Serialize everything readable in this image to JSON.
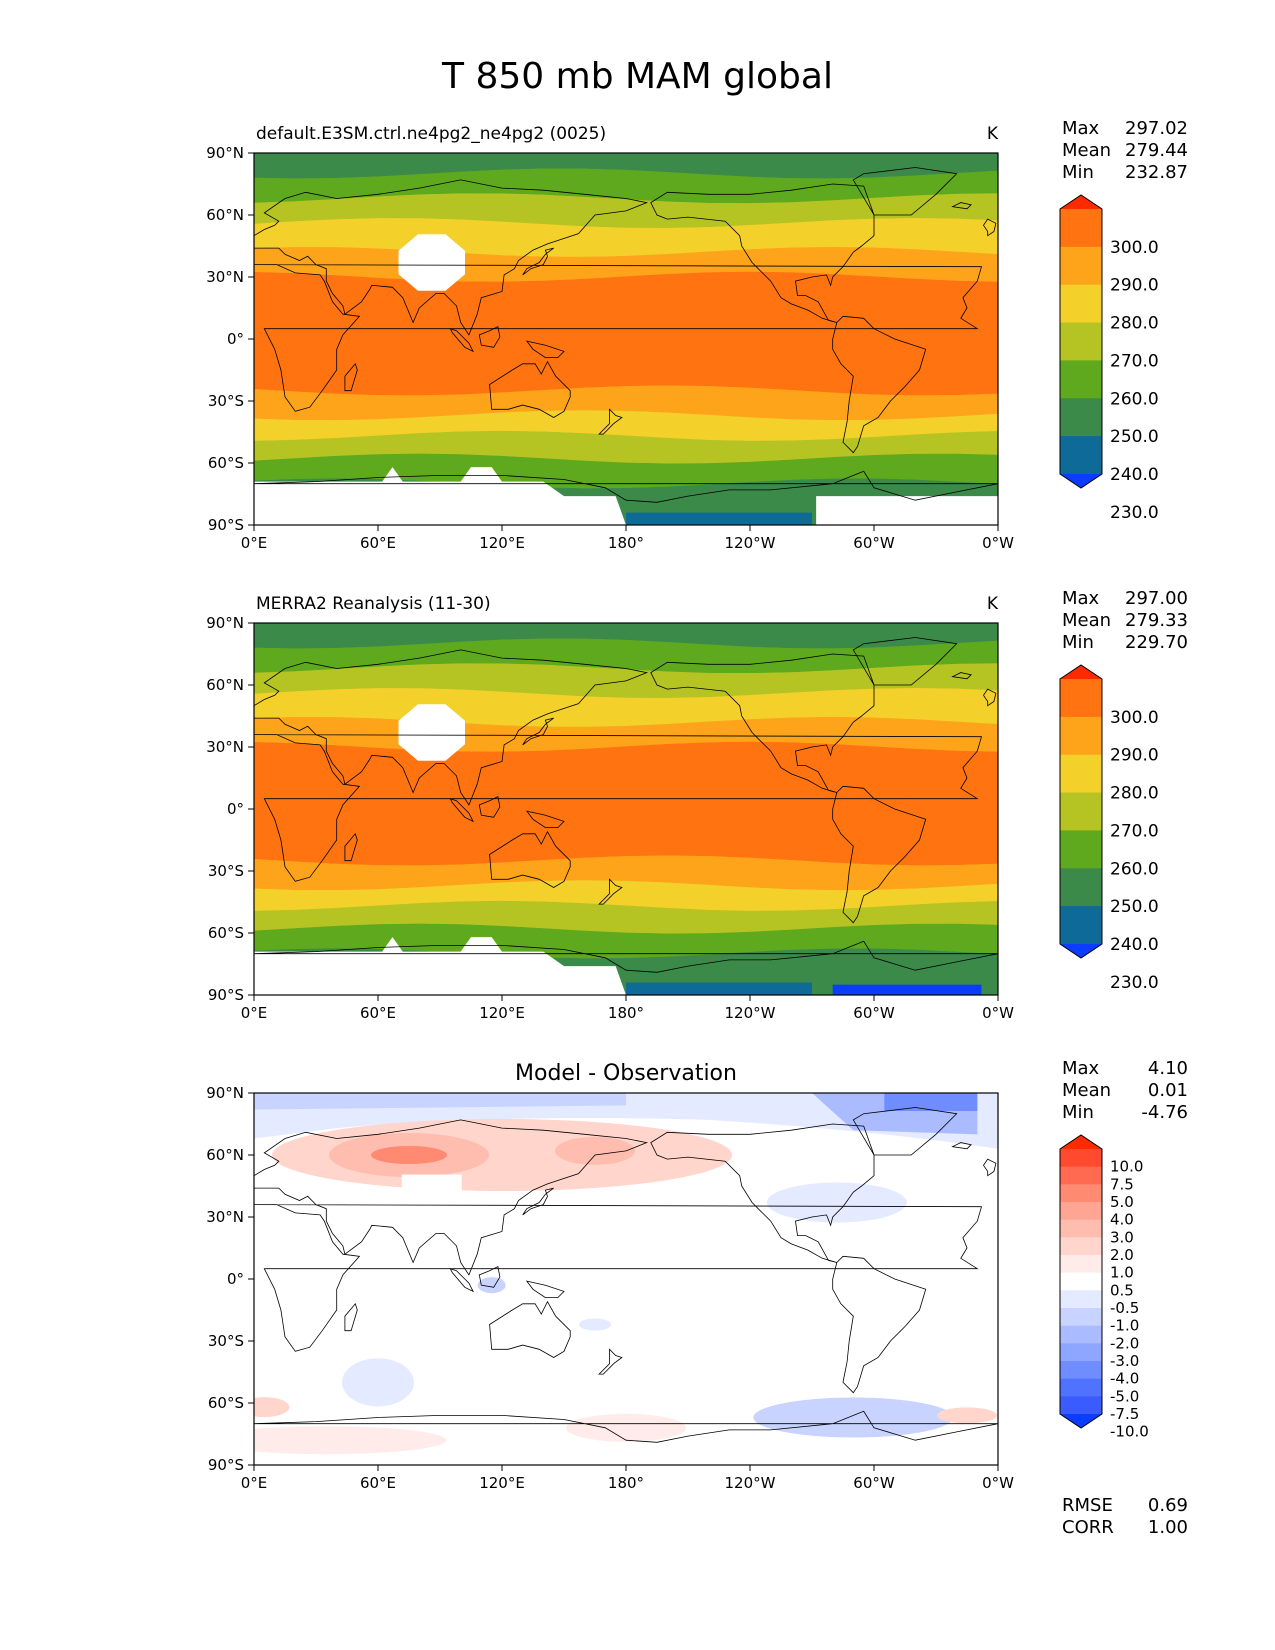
{
  "title": "T 850 mb MAM global",
  "panels": [
    {
      "id": "test",
      "subtitle_left": "default.E3SM.ctrl.ne4pg2_ne4pg2 (0025)",
      "subtitle_center": "",
      "units": "K",
      "stats": [
        {
          "label": "Max",
          "value": "297.02"
        },
        {
          "label": "Mean",
          "value": "279.44"
        },
        {
          "label": "Min",
          "value": "232.87"
        }
      ],
      "colorbar_levels": [
        "300.0",
        "290.0",
        "280.0",
        "270.0",
        "260.0",
        "250.0",
        "240.0",
        "230.0"
      ],
      "colorbar_colors": [
        "#ff2a00",
        "#ff7410",
        "#fea41a",
        "#f3d02a",
        "#b5c423",
        "#5ea91e",
        "#3b8a4a",
        "#0e6a96",
        "#0b3cff"
      ],
      "band_bounds_lat": [
        90,
        80,
        68,
        56,
        42,
        30,
        -25,
        -37,
        -47,
        -58,
        -70,
        -90
      ],
      "band_colors": [
        "#3b8a4a",
        "#5ea91e",
        "#b5c423",
        "#f3d02a",
        "#fea41a",
        "#ff7410",
        "#fea41a",
        "#f3d02a",
        "#b5c423",
        "#5ea91e",
        "#3b8a4a"
      ],
      "extra_dark_bottom": false
    },
    {
      "id": "ref",
      "subtitle_left": "MERRA2 Reanalysis (11-30)",
      "subtitle_center": "",
      "units": "K",
      "stats": [
        {
          "label": "Max",
          "value": "297.00"
        },
        {
          "label": "Mean",
          "value": "279.33"
        },
        {
          "label": "Min",
          "value": "229.70"
        }
      ],
      "colorbar_levels": [
        "300.0",
        "290.0",
        "280.0",
        "270.0",
        "260.0",
        "250.0",
        "240.0",
        "230.0"
      ],
      "colorbar_colors": [
        "#ff2a00",
        "#ff7410",
        "#fea41a",
        "#f3d02a",
        "#b5c423",
        "#5ea91e",
        "#3b8a4a",
        "#0e6a96",
        "#0b3cff"
      ],
      "band_bounds_lat": [
        90,
        80,
        68,
        56,
        42,
        30,
        -25,
        -37,
        -47,
        -58,
        -70,
        -90
      ],
      "band_colors": [
        "#3b8a4a",
        "#5ea91e",
        "#b5c423",
        "#f3d02a",
        "#fea41a",
        "#ff7410",
        "#fea41a",
        "#f3d02a",
        "#b5c423",
        "#5ea91e",
        "#3b8a4a"
      ],
      "extra_dark_bottom": true
    },
    {
      "id": "diff",
      "subtitle_left": "",
      "subtitle_center": "Model - Observation",
      "units": "",
      "stats": [
        {
          "label": "Max",
          "value": "4.10"
        },
        {
          "label": "Mean",
          "value": "0.01"
        },
        {
          "label": "Min",
          "value": "-4.76"
        }
      ],
      "colorbar_levels": [
        "10.0",
        "7.5",
        "5.0",
        "4.0",
        "3.0",
        "2.0",
        "1.0",
        "0.5",
        "-0.5",
        "-1.0",
        "-2.0",
        "-3.0",
        "-4.0",
        "-5.0",
        "-7.5",
        "-10.0"
      ],
      "colorbar_colors": [
        "#ff2a00",
        "#ff4a30",
        "#ff6a50",
        "#ff8a72",
        "#ffa594",
        "#ffbdb0",
        "#ffd5cc",
        "#ffecea",
        "#ffffff",
        "#e4eaff",
        "#c8d4ff",
        "#aabcff",
        "#8ea6ff",
        "#6f8dff",
        "#4f72ff",
        "#3a5cff",
        "#0b3cff"
      ],
      "extra_stats": [
        {
          "label": "RMSE",
          "value": "0.69"
        },
        {
          "label": "CORR",
          "value": "1.00"
        }
      ]
    }
  ],
  "lat_ticks": [
    "90°N",
    "60°N",
    "30°N",
    "0°",
    "30°S",
    "60°S",
    "90°S"
  ],
  "lon_ticks": [
    "0°E",
    "60°E",
    "120°E",
    "180°",
    "120°W",
    "60°W",
    "0°W"
  ]
}
